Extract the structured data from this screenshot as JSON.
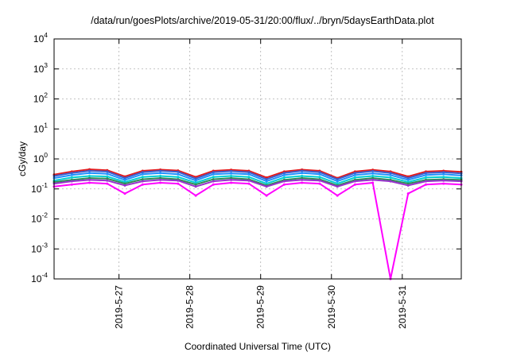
{
  "chart_data": {
    "type": "line",
    "title": "/data/run/goesPlots/archive/2019-05-31/20:00/flux/../bryn/5daysEarthData.plot",
    "xlabel": "Coordinated Universal Time (UTC)",
    "ylabel": "cGy/day",
    "y_scale": "log",
    "ylim": [
      0.0001,
      10000
    ],
    "xlim": [
      "2019-05-26 02:00",
      "2019-05-31 20:00"
    ],
    "grid": true,
    "legend": "none",
    "x_ticks": [
      "2019-5-27",
      "2019-5-28",
      "2019-5-29",
      "2019-5-30",
      "2019-5-31"
    ],
    "y_ticks": [
      {
        "base": "10",
        "exp": "-4"
      },
      {
        "base": "10",
        "exp": "-3"
      },
      {
        "base": "10",
        "exp": "-2"
      },
      {
        "base": "10",
        "exp": "-1"
      },
      {
        "base": "10",
        "exp": "0"
      },
      {
        "base": "10",
        "exp": "1"
      },
      {
        "base": "10",
        "exp": "2"
      },
      {
        "base": "10",
        "exp": "3"
      },
      {
        "base": "10",
        "exp": "4"
      }
    ],
    "x": [
      "2019-05-26 02:00",
      "2019-05-26 08:00",
      "2019-05-26 14:00",
      "2019-05-26 20:00",
      "2019-05-27 02:00",
      "2019-05-27 08:00",
      "2019-05-27 14:00",
      "2019-05-27 20:00",
      "2019-05-28 02:00",
      "2019-05-28 08:00",
      "2019-05-28 14:00",
      "2019-05-28 20:00",
      "2019-05-29 02:00",
      "2019-05-29 08:00",
      "2019-05-29 14:00",
      "2019-05-29 20:00",
      "2019-05-30 02:00",
      "2019-05-30 08:00",
      "2019-05-30 14:00",
      "2019-05-30 20:00",
      "2019-05-31 02:00",
      "2019-05-31 08:00",
      "2019-05-31 14:00",
      "2019-05-31 20:00"
    ],
    "series": [
      {
        "color": "#e41a1c",
        "values": [
          0.3,
          0.38,
          0.45,
          0.42,
          0.26,
          0.4,
          0.44,
          0.41,
          0.25,
          0.4,
          0.43,
          0.4,
          0.24,
          0.38,
          0.44,
          0.4,
          0.23,
          0.38,
          0.43,
          0.38,
          0.26,
          0.38,
          0.4,
          0.37
        ]
      },
      {
        "color": "#3a5fcd",
        "values": [
          0.27,
          0.34,
          0.4,
          0.38,
          0.23,
          0.36,
          0.4,
          0.37,
          0.22,
          0.36,
          0.39,
          0.36,
          0.21,
          0.34,
          0.4,
          0.36,
          0.21,
          0.34,
          0.39,
          0.34,
          0.23,
          0.34,
          0.36,
          0.33
        ]
      },
      {
        "color": "#1e90ff",
        "values": [
          0.23,
          0.29,
          0.34,
          0.32,
          0.2,
          0.31,
          0.34,
          0.31,
          0.19,
          0.31,
          0.33,
          0.31,
          0.18,
          0.29,
          0.34,
          0.31,
          0.18,
          0.29,
          0.33,
          0.29,
          0.2,
          0.29,
          0.31,
          0.28
        ]
      },
      {
        "color": "#00ced1",
        "values": [
          0.19,
          0.24,
          0.27,
          0.26,
          0.17,
          0.25,
          0.27,
          0.25,
          0.16,
          0.25,
          0.27,
          0.25,
          0.15,
          0.24,
          0.27,
          0.25,
          0.15,
          0.24,
          0.27,
          0.24,
          0.17,
          0.24,
          0.25,
          0.23
        ]
      },
      {
        "color": "#2e8b57",
        "values": [
          0.17,
          0.2,
          0.23,
          0.22,
          0.15,
          0.21,
          0.23,
          0.21,
          0.14,
          0.21,
          0.23,
          0.21,
          0.13,
          0.2,
          0.23,
          0.21,
          0.13,
          0.2,
          0.23,
          0.2,
          0.15,
          0.2,
          0.21,
          0.2
        ]
      },
      {
        "color": "#9932cc",
        "values": [
          0.15,
          0.18,
          0.2,
          0.19,
          0.13,
          0.18,
          0.2,
          0.19,
          0.12,
          0.18,
          0.2,
          0.19,
          0.12,
          0.18,
          0.2,
          0.19,
          0.12,
          0.18,
          0.2,
          0.18,
          0.13,
          0.18,
          0.19,
          0.18
        ]
      },
      {
        "color": "#ff00ff",
        "values": [
          0.12,
          0.14,
          0.16,
          0.15,
          0.07,
          0.14,
          0.16,
          0.15,
          0.06,
          0.14,
          0.16,
          0.15,
          0.06,
          0.14,
          0.16,
          0.15,
          0.06,
          0.14,
          0.16,
          0.0001,
          0.07,
          0.14,
          0.15,
          0.14
        ]
      }
    ]
  }
}
